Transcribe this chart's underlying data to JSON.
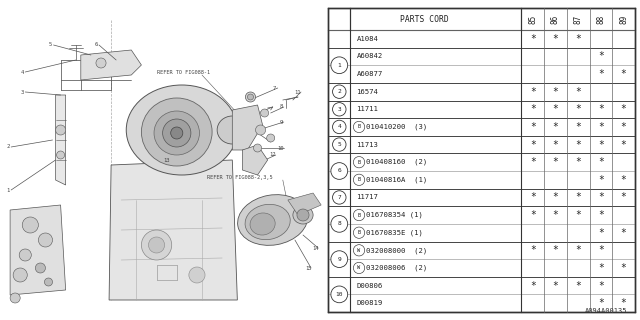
{
  "bg_color": "#ffffff",
  "diagram_ref": "A094A00135",
  "table": {
    "rows": [
      {
        "num": "",
        "part": "A1084",
        "prefix": "",
        "marks": [
          1,
          1,
          1,
          0,
          0
        ]
      },
      {
        "num": "1",
        "part": "A60842",
        "prefix": "",
        "marks": [
          0,
          0,
          0,
          1,
          0
        ]
      },
      {
        "num": "",
        "part": "A60877",
        "prefix": "",
        "marks": [
          0,
          0,
          0,
          1,
          1
        ]
      },
      {
        "num": "2",
        "part": "16574",
        "prefix": "",
        "marks": [
          1,
          1,
          1,
          0,
          0
        ]
      },
      {
        "num": "3",
        "part": "11711",
        "prefix": "",
        "marks": [
          1,
          1,
          1,
          1,
          1
        ]
      },
      {
        "num": "4",
        "part": "010410200  (3)",
        "prefix": "B",
        "marks": [
          1,
          1,
          1,
          1,
          1
        ]
      },
      {
        "num": "5",
        "part": "11713",
        "prefix": "",
        "marks": [
          1,
          1,
          1,
          1,
          1
        ]
      },
      {
        "num": "6",
        "part": "010408160  (2)",
        "prefix": "B",
        "marks": [
          1,
          1,
          1,
          1,
          0
        ]
      },
      {
        "num": "",
        "part": "01040816A  (1)",
        "prefix": "B",
        "marks": [
          0,
          0,
          0,
          1,
          1
        ]
      },
      {
        "num": "7",
        "part": "11717",
        "prefix": "",
        "marks": [
          1,
          1,
          1,
          1,
          1
        ]
      },
      {
        "num": "8",
        "part": "016708354 (1)",
        "prefix": "B",
        "marks": [
          1,
          1,
          1,
          1,
          0
        ]
      },
      {
        "num": "",
        "part": "01670835E (1)",
        "prefix": "B",
        "marks": [
          0,
          0,
          0,
          1,
          1
        ]
      },
      {
        "num": "9",
        "part": "032008000  (2)",
        "prefix": "W",
        "marks": [
          1,
          1,
          1,
          1,
          0
        ]
      },
      {
        "num": "",
        "part": "032008006  (2)",
        "prefix": "W",
        "marks": [
          0,
          0,
          0,
          1,
          1
        ]
      },
      {
        "num": "10",
        "part": "D00806",
        "prefix": "",
        "marks": [
          1,
          1,
          1,
          1,
          0
        ]
      },
      {
        "num": "",
        "part": "D00819",
        "prefix": "",
        "marks": [
          0,
          0,
          0,
          1,
          1
        ]
      }
    ]
  }
}
